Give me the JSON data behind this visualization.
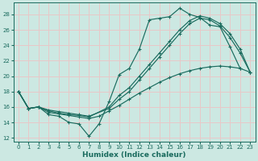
{
  "xlabel": "Humidex (Indice chaleur)",
  "xlim": [
    -0.5,
    23.5
  ],
  "ylim": [
    11.5,
    29.5
  ],
  "xticks": [
    0,
    1,
    2,
    3,
    4,
    5,
    6,
    7,
    8,
    9,
    10,
    11,
    12,
    13,
    14,
    15,
    16,
    17,
    18,
    19,
    20,
    21,
    22,
    23
  ],
  "yticks": [
    12,
    14,
    16,
    18,
    20,
    22,
    24,
    26,
    28
  ],
  "bg_color": "#cce8e2",
  "grid_color": "#e8c8c8",
  "line_color": "#1a6b5e",
  "line1_x": [
    0,
    1,
    2,
    3,
    4,
    5,
    6,
    7,
    8,
    9,
    10,
    11,
    12,
    13,
    14,
    15,
    16,
    17,
    18,
    19,
    20,
    21,
    22
  ],
  "line1_y": [
    18,
    15.8,
    16.0,
    15.0,
    14.8,
    14.0,
    13.8,
    12.2,
    13.8,
    16.7,
    20.2,
    21.0,
    23.5,
    27.3,
    27.5,
    27.7,
    28.8,
    28.0,
    27.6,
    26.6,
    26.4,
    23.8,
    21.0
  ],
  "line2_x": [
    0,
    1,
    2,
    3,
    4,
    5,
    6,
    7,
    8,
    9,
    10,
    11,
    12,
    13,
    14,
    15,
    16,
    17,
    18,
    19,
    20,
    21,
    22,
    23
  ],
  "line2_y": [
    18,
    15.8,
    16.0,
    15.3,
    15.1,
    14.9,
    14.7,
    14.5,
    14.8,
    15.5,
    16.2,
    17.0,
    17.8,
    18.5,
    19.2,
    19.8,
    20.3,
    20.7,
    21.0,
    21.2,
    21.3,
    21.2,
    21.0,
    20.5
  ],
  "line3_x": [
    0,
    1,
    2,
    3,
    4,
    5,
    6,
    7,
    9,
    10,
    11,
    12,
    13,
    14,
    15,
    16,
    17,
    18,
    19,
    20,
    21,
    22,
    23
  ],
  "line3_y": [
    18,
    15.8,
    16.0,
    15.5,
    15.2,
    15.0,
    14.9,
    14.7,
    16.0,
    17.5,
    18.5,
    20.0,
    21.5,
    23.0,
    24.5,
    26.0,
    27.2,
    27.8,
    27.5,
    26.8,
    25.5,
    23.5,
    20.5
  ],
  "line4_x": [
    0,
    1,
    2,
    3,
    4,
    5,
    6,
    7,
    9,
    10,
    11,
    12,
    13,
    14,
    15,
    16,
    17,
    18,
    19,
    20,
    21,
    22,
    23
  ],
  "line4_y": [
    18,
    15.8,
    16.0,
    15.6,
    15.4,
    15.2,
    15.0,
    14.8,
    15.8,
    17.0,
    18.0,
    19.5,
    21.0,
    22.5,
    24.0,
    25.5,
    26.8,
    27.5,
    27.3,
    26.5,
    25.0,
    23.0,
    20.5
  ]
}
